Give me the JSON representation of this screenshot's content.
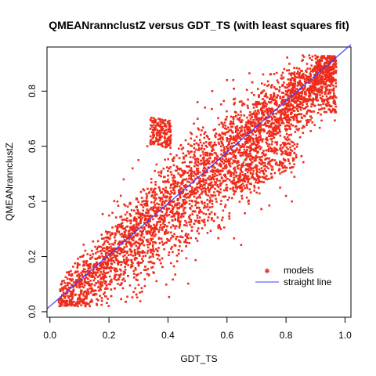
{
  "chart_data": {
    "type": "scatter",
    "title": "QMEANrannclustZ versus GDT_TS (with least squares fit)",
    "xlabel": "GDT_TS",
    "ylabel": "QMEANrannclustZ",
    "xlim": [
      -0.01,
      1.02
    ],
    "ylim": [
      -0.02,
      0.96
    ],
    "xticks": [
      0.0,
      0.2,
      0.4,
      0.6,
      0.8,
      1.0
    ],
    "xtick_labels": [
      "0.0",
      "0.2",
      "0.4",
      "0.6",
      "0.8",
      "1.0"
    ],
    "yticks": [
      0.0,
      0.2,
      0.4,
      0.6,
      0.8
    ],
    "ytick_labels": [
      "0.0",
      "0.2",
      "0.4",
      "0.6",
      "0.8"
    ],
    "grid": false,
    "legend_position": "bottom-right",
    "series": [
      {
        "name": "models",
        "kind": "points",
        "color": "#ee2d1c",
        "marker": "star",
        "sample_points": [
          [
            0.05,
            0.05
          ],
          [
            0.08,
            0.08
          ],
          [
            0.1,
            0.1
          ],
          [
            0.12,
            0.13
          ],
          [
            0.15,
            0.14
          ],
          [
            0.18,
            0.19
          ],
          [
            0.2,
            0.22
          ],
          [
            0.22,
            0.25
          ],
          [
            0.25,
            0.27
          ],
          [
            0.28,
            0.3
          ],
          [
            0.3,
            0.32
          ],
          [
            0.32,
            0.35
          ],
          [
            0.35,
            0.37
          ],
          [
            0.38,
            0.41
          ],
          [
            0.4,
            0.43
          ],
          [
            0.42,
            0.45
          ],
          [
            0.45,
            0.47
          ],
          [
            0.48,
            0.5
          ],
          [
            0.5,
            0.53
          ],
          [
            0.52,
            0.55
          ],
          [
            0.55,
            0.57
          ],
          [
            0.58,
            0.6
          ],
          [
            0.6,
            0.63
          ],
          [
            0.62,
            0.65
          ],
          [
            0.65,
            0.67
          ],
          [
            0.68,
            0.7
          ],
          [
            0.7,
            0.72
          ],
          [
            0.72,
            0.74
          ],
          [
            0.75,
            0.76
          ],
          [
            0.78,
            0.78
          ],
          [
            0.8,
            0.8
          ],
          [
            0.82,
            0.8
          ],
          [
            0.85,
            0.82
          ],
          [
            0.88,
            0.85
          ],
          [
            0.9,
            0.86
          ],
          [
            0.93,
            0.88
          ],
          [
            0.95,
            0.9
          ],
          [
            0.96,
            0.82
          ],
          [
            0.95,
            0.78
          ],
          [
            0.35,
            0.65
          ],
          [
            0.38,
            0.67
          ],
          [
            0.4,
            0.69
          ],
          [
            0.33,
            0.6
          ],
          [
            0.36,
            0.62
          ],
          [
            0.25,
            0.48
          ],
          [
            0.28,
            0.52
          ],
          [
            0.3,
            0.55
          ],
          [
            0.5,
            0.76
          ],
          [
            0.55,
            0.8
          ],
          [
            0.6,
            0.84
          ],
          [
            0.2,
            0.1
          ],
          [
            0.3,
            0.18
          ],
          [
            0.4,
            0.26
          ],
          [
            0.5,
            0.34
          ],
          [
            0.6,
            0.44
          ],
          [
            0.7,
            0.52
          ],
          [
            0.75,
            0.5
          ],
          [
            0.78,
            0.45
          ],
          [
            0.8,
            0.42
          ],
          [
            0.82,
            0.4
          ],
          [
            0.65,
            0.42
          ],
          [
            0.1,
            0.03
          ],
          [
            0.15,
            0.06
          ],
          [
            0.25,
            0.12
          ],
          [
            0.35,
            0.2
          ],
          [
            0.45,
            0.27
          ],
          [
            0.55,
            0.38
          ]
        ]
      },
      {
        "name": "straight line",
        "kind": "line",
        "color": "#3b3bff",
        "intercept": 0.02,
        "slope": 0.93
      }
    ]
  }
}
